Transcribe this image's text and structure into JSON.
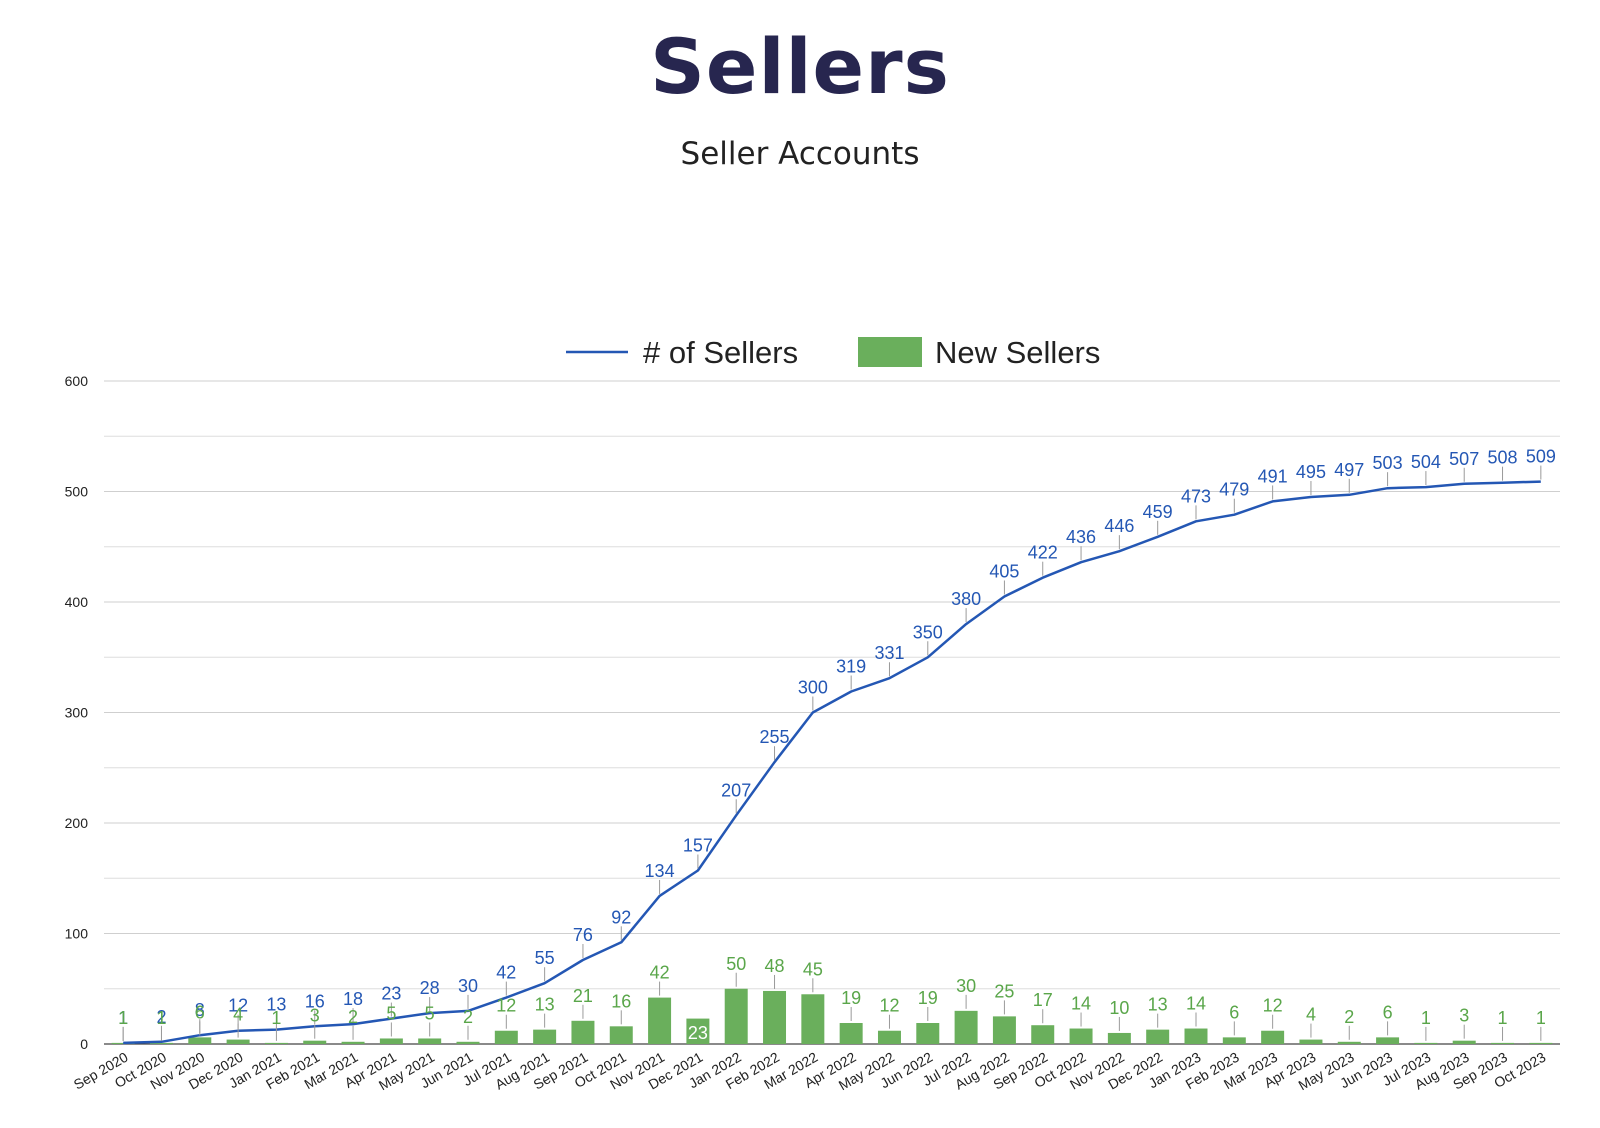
{
  "page": {
    "title": "Sellers",
    "subtitle": "Seller Accounts"
  },
  "chart_data": {
    "type": "bar",
    "title": "Sellers",
    "subtitle": "Seller Accounts",
    "xlabel": "",
    "ylabel": "",
    "ylim": [
      0,
      600
    ],
    "yticks": [
      0,
      100,
      200,
      300,
      400,
      500,
      600
    ],
    "grid": true,
    "legend_position": "top",
    "categories": [
      "Sep 2020",
      "Oct 2020",
      "Nov 2020",
      "Dec 2020",
      "Jan 2021",
      "Feb 2021",
      "Mar 2021",
      "Apr 2021",
      "May 2021",
      "Jun 2021",
      "Jul 2021",
      "Aug 2021",
      "Sep 2021",
      "Oct 2021",
      "Nov 2021",
      "Dec 2021",
      "Jan 2022",
      "Feb 2022",
      "Mar 2022",
      "Apr 2022",
      "May 2022",
      "Jun 2022",
      "Jul 2022",
      "Aug 2022",
      "Sep 2022",
      "Oct 2022",
      "Nov 2022",
      "Dec 2022",
      "Jan 2023",
      "Feb 2023",
      "Mar 2023",
      "Apr 2023",
      "May 2023",
      "Jun 2023",
      "Jul 2023",
      "Aug 2023",
      "Sep 2023",
      "Oct 2023"
    ],
    "series": [
      {
        "name": "# of Sellers",
        "type": "line",
        "color": "#2457b4",
        "values": [
          1,
          2,
          8,
          12,
          13,
          16,
          18,
          23,
          28,
          30,
          42,
          55,
          76,
          92,
          134,
          157,
          207,
          255,
          300,
          319,
          331,
          350,
          380,
          405,
          422,
          436,
          446,
          459,
          473,
          479,
          491,
          495,
          497,
          503,
          504,
          507,
          508,
          509
        ]
      },
      {
        "name": "New Sellers",
        "type": "bar",
        "color": "#6aaf5c",
        "label_color": "#5aa64a",
        "values": [
          1,
          1,
          6,
          4,
          1,
          3,
          2,
          5,
          5,
          2,
          12,
          13,
          21,
          16,
          42,
          23,
          50,
          48,
          45,
          19,
          12,
          19,
          30,
          25,
          17,
          14,
          10,
          13,
          14,
          6,
          12,
          4,
          2,
          6,
          1,
          3,
          1,
          1
        ]
      }
    ]
  }
}
